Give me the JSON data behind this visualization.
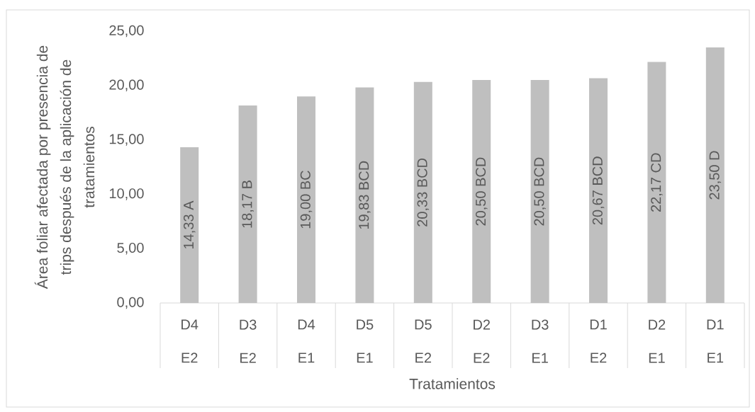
{
  "chart_data": {
    "type": "bar",
    "ylabel": "Área foliar afectada por presencia de trips después de la aplicación de tratamientos",
    "xlabel": "Tratamientos",
    "categories": [
      "D4 E2",
      "D3 E2",
      "D4 E1",
      "D5 E1",
      "D5 E2",
      "D2 E2",
      "D3 E1",
      "D1 E2",
      "D2 E1",
      "D1 E1"
    ],
    "values": [
      14.33,
      18.17,
      19.0,
      19.83,
      20.33,
      20.5,
      20.5,
      20.67,
      22.17,
      23.5
    ],
    "color": "#bfbfbf",
    "value_labels": [
      "14,33 A",
      "18,17 B",
      "19,00 BC",
      "19,83 BCD",
      "20,33 BCD",
      "20,50 BCD",
      "20,50 BCD",
      "20,67 BCD",
      "22,17 CD",
      "23,50 D"
    ],
    "ylim": [
      0,
      25
    ],
    "yticks": [
      {
        "value": 0,
        "label": "0,00"
      },
      {
        "value": 5,
        "label": "5,00"
      },
      {
        "value": 10,
        "label": "10,00"
      },
      {
        "value": 15,
        "label": "15,00"
      },
      {
        "value": 20,
        "label": "20,00"
      },
      {
        "value": 25,
        "label": "25,00"
      }
    ]
  }
}
